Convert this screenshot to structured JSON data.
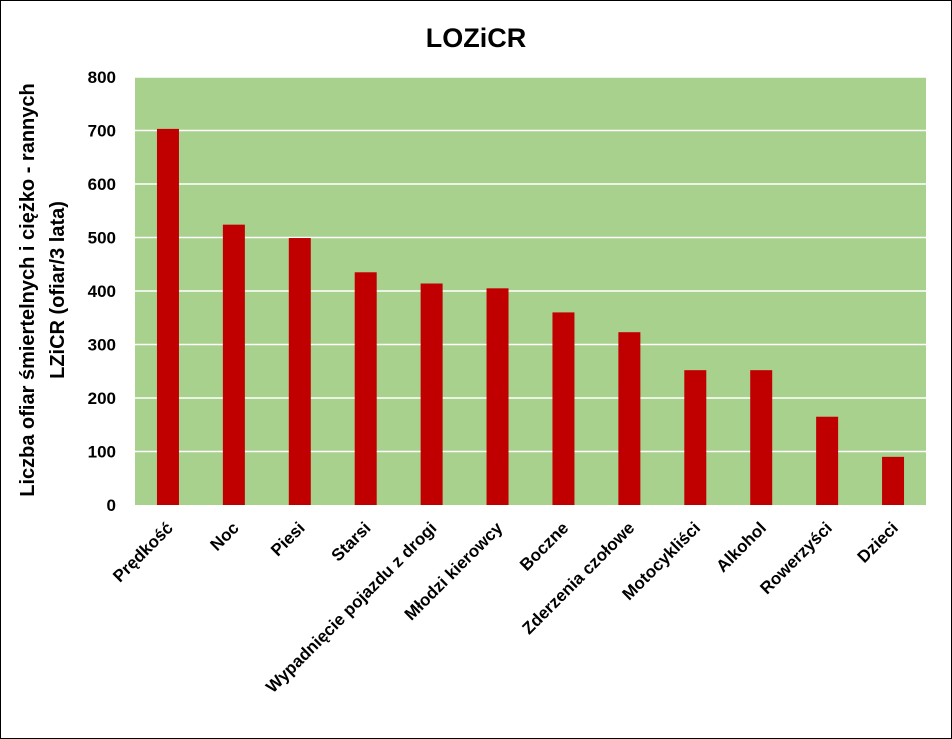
{
  "chart_data": {
    "type": "bar",
    "title": "LOZiCR",
    "ylabel_lines": [
      "Liczba ofiar śmiertelnych i ciężko - rannych",
      "LZiCR (ofiar/3 lata)"
    ],
    "xlabel": "",
    "categories": [
      "Prędkość",
      "Noc",
      "Piesi",
      "Starsi",
      "Wypadnięcie pojazdu z drogi",
      "Młodzi kierowcy",
      "Boczne",
      "Zderzenia czołowe",
      "Motocykliści",
      "Alkohol",
      "Rowerzyści",
      "Dzieci"
    ],
    "values": [
      703,
      524,
      499,
      435,
      414,
      405,
      360,
      323,
      252,
      252,
      165,
      90
    ],
    "ylim": [
      0,
      800
    ],
    "yticks": [
      "0",
      "100",
      "200",
      "300",
      "400",
      "500",
      "600",
      "700",
      "800"
    ],
    "grid": true,
    "legend": "none",
    "colors": {
      "bar": "#c00000",
      "plot_background": "#a9d18e",
      "gridline": "#ffffff"
    }
  }
}
